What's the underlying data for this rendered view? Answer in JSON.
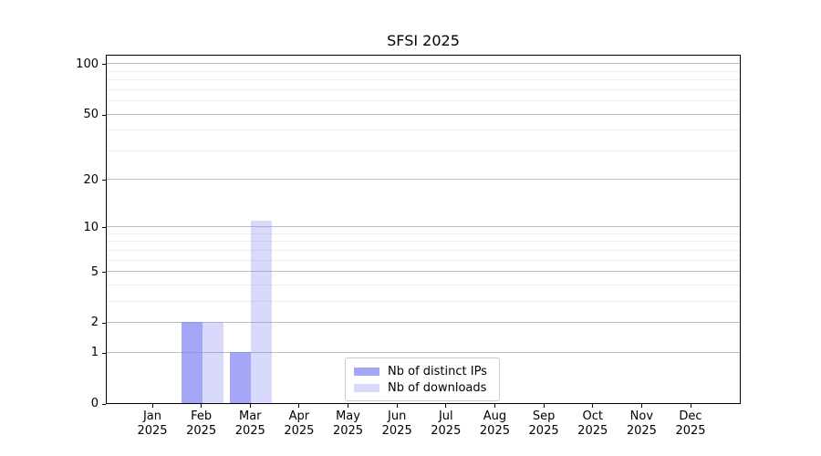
{
  "figure": {
    "background": "#ffffff",
    "axis_color": "#000000",
    "text_color": "#000000"
  },
  "chart_data": {
    "type": "bar",
    "title": "SFSI 2025",
    "categories": [
      "Jan",
      "Feb",
      "Mar",
      "Apr",
      "May",
      "Jun",
      "Jul",
      "Aug",
      "Sep",
      "Oct",
      "Nov",
      "Dec"
    ],
    "x_tick_year": "2025",
    "series": [
      {
        "name": "Nb of distinct IPs",
        "color": "rgba(128,128,243,0.70)",
        "color_hex": "#aaaaf5",
        "values": [
          0,
          2,
          1,
          0,
          0,
          0,
          0,
          0,
          0,
          0,
          0,
          0
        ]
      },
      {
        "name": "Nb of downloads",
        "color": "rgba(128,128,243,0.30)",
        "color_hex": "#d9d9f9",
        "values": [
          0,
          2,
          11,
          0,
          0,
          0,
          0,
          0,
          0,
          0,
          0,
          0
        ]
      }
    ],
    "y_axis": {
      "scale": "log1p",
      "major_ticks": [
        0,
        1,
        2,
        5,
        10,
        20,
        50,
        100
      ],
      "minor_ticks": [
        3,
        4,
        6,
        7,
        8,
        9,
        30,
        40,
        60,
        70,
        80,
        90
      ],
      "ylim": [
        0,
        114.7
      ]
    },
    "grid": {
      "show": true,
      "major_color": "#bdbdbd",
      "minor_color": "#ededed"
    },
    "legend": {
      "position": "lower-center",
      "border_color": "#cbcbcb"
    }
  }
}
